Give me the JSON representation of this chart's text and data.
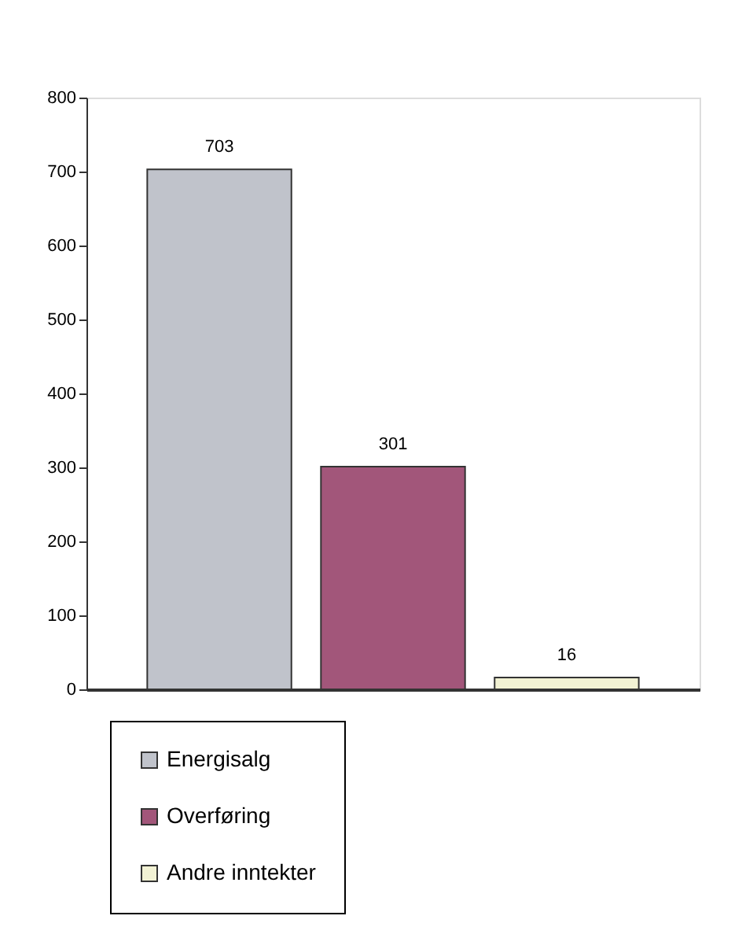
{
  "chart_data": {
    "type": "bar",
    "categories": [
      null,
      null,
      null
    ],
    "series": [
      {
        "name": "Energisalg",
        "color": "#c0c3cb",
        "values": [
          703,
          null,
          null
        ]
      },
      {
        "name": "Overføring",
        "color": "#a2567a",
        "values": [
          null,
          301,
          null
        ]
      },
      {
        "name": "Andre inntekter",
        "color": "#f2f2d4",
        "values": [
          null,
          null,
          16
        ]
      }
    ],
    "ylim": [
      0,
      800
    ],
    "yticks": [
      0,
      100,
      200,
      300,
      400,
      500,
      600,
      700,
      800
    ],
    "data_labels": true,
    "grid": false,
    "legend": "bottom left",
    "tick_labels": "y"
  }
}
